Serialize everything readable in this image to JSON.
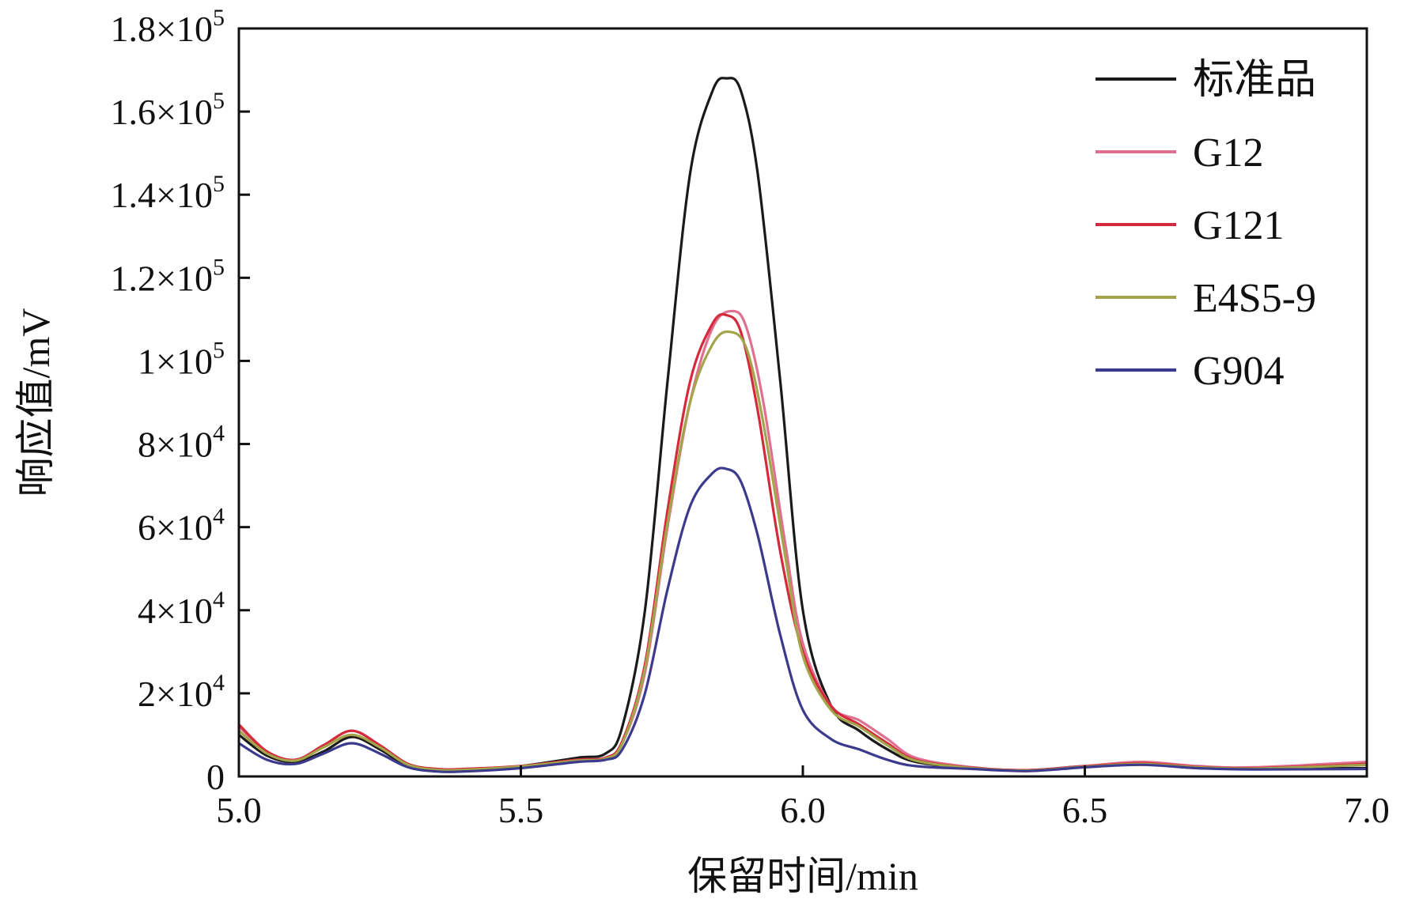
{
  "chart_data": {
    "type": "line",
    "title": "",
    "xlabel": "保留时间/min",
    "ylabel": "响应值/mV",
    "xlim": [
      5.0,
      7.0
    ],
    "ylim": [
      0,
      180000
    ],
    "xticks": [
      5.0,
      5.5,
      6.0,
      6.5,
      7.0
    ],
    "xtick_labels": [
      "5.0",
      "5.5",
      "6.0",
      "6.5",
      "7.0"
    ],
    "yticks": [
      {
        "value": 0,
        "mantissa": "0",
        "exp": ""
      },
      {
        "value": 20000,
        "mantissa": "2×10",
        "exp": "4"
      },
      {
        "value": 40000,
        "mantissa": "4×10",
        "exp": "4"
      },
      {
        "value": 60000,
        "mantissa": "6×10",
        "exp": "4"
      },
      {
        "value": 80000,
        "mantissa": "8×10",
        "exp": "4"
      },
      {
        "value": 100000,
        "mantissa": "1×10",
        "exp": "5"
      },
      {
        "value": 120000,
        "mantissa": "1.2×10",
        "exp": "5"
      },
      {
        "value": 140000,
        "mantissa": "1.4×10",
        "exp": "5"
      },
      {
        "value": 160000,
        "mantissa": "1.6×10",
        "exp": "5"
      },
      {
        "value": 180000,
        "mantissa": "1.8×10",
        "exp": "5"
      }
    ],
    "grid": false,
    "legend_position": "top-right",
    "series": [
      {
        "name": "标准品",
        "color": "#1a1a1a",
        "x": [
          5.0,
          5.05,
          5.1,
          5.15,
          5.2,
          5.25,
          5.3,
          5.35,
          5.4,
          5.5,
          5.6,
          5.65,
          5.68,
          5.72,
          5.76,
          5.8,
          5.84,
          5.865,
          5.89,
          5.92,
          5.96,
          6.0,
          6.05,
          6.1,
          6.15,
          6.2,
          6.3,
          6.4,
          6.5,
          6.6,
          6.7,
          6.8,
          7.0
        ],
        "y": [
          10000,
          5000,
          3500,
          6000,
          9500,
          6500,
          2500,
          1500,
          1500,
          2500,
          4500,
          5500,
          12000,
          40000,
          95000,
          145000,
          165000,
          168000,
          165000,
          145000,
          95000,
          40000,
          17000,
          11000,
          6500,
          3500,
          2000,
          1500,
          2500,
          3000,
          2000,
          2000,
          2000
        ]
      },
      {
        "name": "G12",
        "color": "#e0708f",
        "x": [
          5.0,
          5.05,
          5.1,
          5.15,
          5.2,
          5.25,
          5.3,
          5.35,
          5.4,
          5.5,
          5.6,
          5.65,
          5.68,
          5.72,
          5.76,
          5.8,
          5.84,
          5.875,
          5.9,
          5.93,
          5.97,
          6.0,
          6.05,
          6.1,
          6.15,
          6.2,
          6.3,
          6.4,
          6.5,
          6.6,
          6.7,
          6.8,
          7.0
        ],
        "y": [
          12000,
          6000,
          4000,
          7500,
          11000,
          7500,
          3000,
          1800,
          1800,
          2500,
          4000,
          4500,
          8000,
          25000,
          60000,
          90000,
          108000,
          112000,
          108000,
          90000,
          55000,
          32000,
          17000,
          13500,
          9000,
          4500,
          2200,
          1500,
          2500,
          3500,
          2500,
          2200,
          3500
        ]
      },
      {
        "name": "G121",
        "color": "#d42a3c",
        "x": [
          5.0,
          5.05,
          5.1,
          5.15,
          5.2,
          5.25,
          5.3,
          5.35,
          5.4,
          5.5,
          5.6,
          5.65,
          5.68,
          5.72,
          5.76,
          5.8,
          5.84,
          5.865,
          5.89,
          5.92,
          5.96,
          6.0,
          6.05,
          6.1,
          6.15,
          6.2,
          6.3,
          6.4,
          6.5,
          6.6,
          6.7,
          6.8,
          7.0
        ],
        "y": [
          12500,
          6000,
          4000,
          7500,
          11000,
          7500,
          3000,
          1800,
          1800,
          2500,
          4000,
          4500,
          8500,
          27000,
          64000,
          95000,
          109000,
          111000,
          107000,
          88000,
          54000,
          30000,
          17000,
          12500,
          8000,
          4000,
          2100,
          1500,
          2400,
          3200,
          2300,
          2000,
          3000
        ]
      },
      {
        "name": "E4S5-9",
        "color": "#a4a44a",
        "x": [
          5.0,
          5.05,
          5.1,
          5.15,
          5.2,
          5.25,
          5.3,
          5.35,
          5.4,
          5.5,
          5.6,
          5.65,
          5.68,
          5.72,
          5.76,
          5.8,
          5.84,
          5.87,
          5.9,
          5.93,
          5.97,
          6.0,
          6.05,
          6.1,
          6.15,
          6.2,
          6.3,
          6.4,
          6.5,
          6.6,
          6.7,
          6.8,
          7.0
        ],
        "y": [
          11000,
          5500,
          3800,
          7000,
          10000,
          7000,
          2800,
          1600,
          1600,
          2400,
          3800,
          4300,
          8000,
          26000,
          61000,
          90000,
          104000,
          107000,
          103000,
          85000,
          52000,
          29000,
          16000,
          12000,
          7500,
          3800,
          2000,
          1400,
          2300,
          3000,
          2200,
          1900,
          2800
        ]
      },
      {
        "name": "G904",
        "color": "#3c3a8c",
        "x": [
          5.0,
          5.05,
          5.1,
          5.15,
          5.2,
          5.25,
          5.3,
          5.35,
          5.4,
          5.5,
          5.6,
          5.65,
          5.68,
          5.72,
          5.76,
          5.8,
          5.84,
          5.865,
          5.89,
          5.92,
          5.96,
          6.0,
          6.05,
          6.1,
          6.15,
          6.2,
          6.3,
          6.4,
          6.5,
          6.6,
          6.7,
          6.8,
          7.0
        ],
        "y": [
          8000,
          4000,
          3000,
          5500,
          8000,
          5500,
          2200,
          1200,
          1200,
          2000,
          3500,
          4000,
          6500,
          20000,
          45000,
          65000,
          73000,
          74000,
          71000,
          58000,
          34000,
          16000,
          9000,
          6500,
          4000,
          2500,
          1800,
          1300,
          2200,
          2800,
          2000,
          1700,
          1800
        ]
      }
    ]
  }
}
